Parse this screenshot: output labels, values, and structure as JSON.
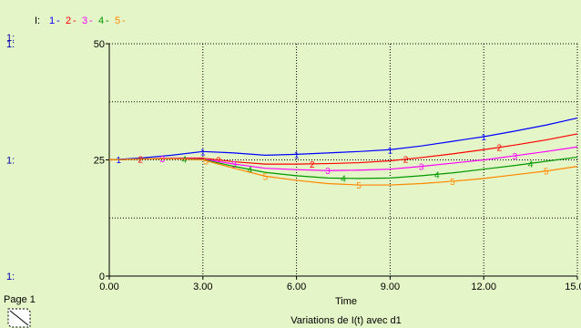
{
  "chart_data": {
    "type": "line",
    "title": "Variations de I(t) avec d1",
    "xlabel": "Time",
    "ylabel": "",
    "legend_prefix": "I:",
    "legend_placement": "top-left",
    "axis_unit_label": "1:",
    "xlim": [
      0,
      15
    ],
    "ylim": [
      0,
      50
    ],
    "x_ticks": [
      0,
      3,
      6,
      9,
      12,
      15
    ],
    "x_tick_labels": [
      "0.00",
      "3.00",
      "6.00",
      "9.00",
      "12.00",
      "15.00"
    ],
    "y_ticks": [
      0,
      25,
      50
    ],
    "y_tick_labels": [
      "0",
      "25",
      "50"
    ],
    "grid": true,
    "x": [
      0,
      1,
      2,
      3,
      4,
      5,
      6,
      7,
      8,
      9,
      10,
      11,
      12,
      13,
      14,
      15
    ],
    "series": [
      {
        "name": "1",
        "color": "#0000ff",
        "values": [
          25,
          25.4,
          26,
          26.8,
          26.5,
          26,
          26.2,
          26.5,
          26.8,
          27.2,
          28,
          29,
          30,
          31.2,
          32.5,
          34
        ]
      },
      {
        "name": "2",
        "color": "#ff0000",
        "values": [
          25,
          25.2,
          25.4,
          25.4,
          24.6,
          24.1,
          24.1,
          24.2,
          24.4,
          24.8,
          25.5,
          26.3,
          27.2,
          28.2,
          29.3,
          30.6
        ]
      },
      {
        "name": "3",
        "color": "#ff00ff",
        "values": [
          25,
          25.2,
          25.4,
          25.2,
          24.1,
          23.2,
          22.9,
          22.7,
          22.8,
          23.0,
          23.6,
          24.3,
          25.0,
          25.9,
          26.8,
          27.8
        ]
      },
      {
        "name": "4",
        "color": "#009900",
        "values": [
          25,
          25.2,
          25.3,
          25.1,
          23.6,
          22.3,
          21.6,
          21.1,
          21.0,
          21.1,
          21.6,
          22.2,
          23.0,
          23.8,
          24.7,
          25.6
        ]
      },
      {
        "name": "5",
        "color": "#ff8800",
        "values": [
          25,
          25.2,
          25.3,
          25.0,
          23.2,
          21.5,
          20.6,
          19.9,
          19.6,
          19.6,
          19.9,
          20.4,
          21.0,
          21.8,
          22.6,
          23.6
        ]
      }
    ]
  },
  "footer": {
    "page_label": "Page 1"
  }
}
